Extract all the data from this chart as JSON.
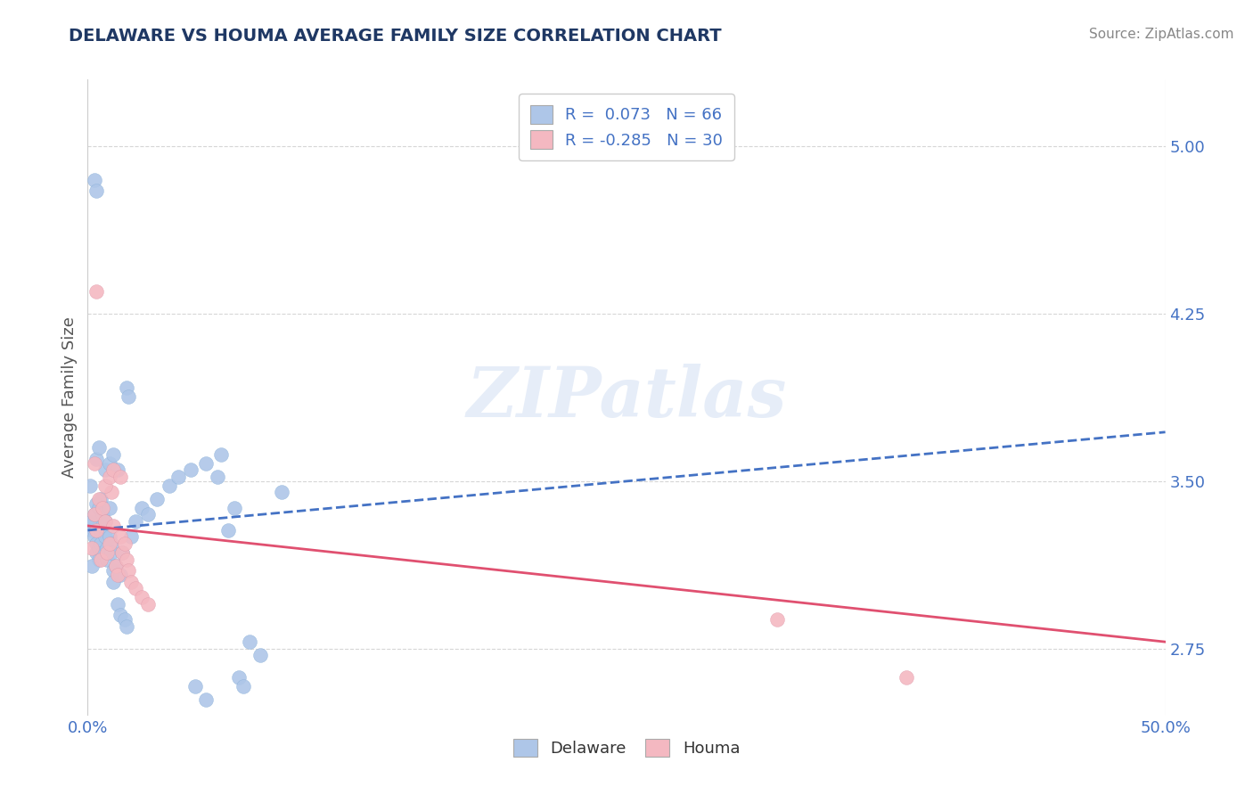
{
  "title": "DELAWARE VS HOUMA AVERAGE FAMILY SIZE CORRELATION CHART",
  "source_text": "Source: ZipAtlas.com",
  "ylabel": "Average Family Size",
  "yticks": [
    2.75,
    3.5,
    4.25,
    5.0
  ],
  "ytick_labels": [
    "2.75",
    "3.50",
    "4.25",
    "5.00"
  ],
  "xlim": [
    0.0,
    0.5
  ],
  "ylim": [
    2.45,
    5.3
  ],
  "legend_entries": [
    {
      "label": "R =  0.073   N = 66",
      "color": "#aec6e8"
    },
    {
      "label": "R = -0.285   N = 30",
      "color": "#f4b8c1"
    }
  ],
  "legend_bottom": [
    "Delaware",
    "Houma"
  ],
  "watermark": "ZIPatlas",
  "delaware_color": "#aec6e8",
  "houma_color": "#f4b8c1",
  "delaware_line_color": "#4472c4",
  "houma_line_color": "#e05070",
  "background_color": "#ffffff",
  "grid_color": "#cccccc",
  "delaware_points": [
    [
      0.001,
      3.3
    ],
    [
      0.002,
      3.28
    ],
    [
      0.002,
      3.32
    ],
    [
      0.003,
      3.25
    ],
    [
      0.003,
      3.35
    ],
    [
      0.004,
      3.22
    ],
    [
      0.004,
      3.18
    ],
    [
      0.004,
      3.4
    ],
    [
      0.005,
      3.15
    ],
    [
      0.005,
      3.2
    ],
    [
      0.005,
      3.38
    ],
    [
      0.006,
      3.42
    ],
    [
      0.006,
      3.28
    ],
    [
      0.006,
      3.22
    ],
    [
      0.007,
      3.3
    ],
    [
      0.007,
      3.18
    ],
    [
      0.007,
      3.35
    ],
    [
      0.008,
      3.32
    ],
    [
      0.008,
      3.25
    ],
    [
      0.009,
      3.2
    ],
    [
      0.009,
      3.15
    ],
    [
      0.01,
      3.25
    ],
    [
      0.01,
      3.38
    ],
    [
      0.011,
      3.22
    ],
    [
      0.011,
      3.18
    ],
    [
      0.012,
      3.1
    ],
    [
      0.012,
      3.05
    ],
    [
      0.013,
      3.12
    ],
    [
      0.014,
      2.95
    ],
    [
      0.015,
      2.9
    ],
    [
      0.015,
      3.08
    ],
    [
      0.016,
      3.18
    ],
    [
      0.017,
      2.88
    ],
    [
      0.018,
      2.85
    ],
    [
      0.004,
      3.6
    ],
    [
      0.005,
      3.65
    ],
    [
      0.003,
      4.85
    ],
    [
      0.004,
      4.8
    ],
    [
      0.008,
      3.55
    ],
    [
      0.01,
      3.58
    ],
    [
      0.012,
      3.62
    ],
    [
      0.014,
      3.55
    ],
    [
      0.02,
      3.25
    ],
    [
      0.022,
      3.32
    ],
    [
      0.025,
      3.38
    ],
    [
      0.028,
      3.35
    ],
    [
      0.032,
      3.42
    ],
    [
      0.038,
      3.48
    ],
    [
      0.042,
      3.52
    ],
    [
      0.048,
      3.55
    ],
    [
      0.055,
      3.58
    ],
    [
      0.062,
      3.62
    ],
    [
      0.068,
      3.38
    ],
    [
      0.075,
      2.78
    ],
    [
      0.08,
      2.72
    ],
    [
      0.09,
      3.45
    ],
    [
      0.05,
      2.58
    ],
    [
      0.055,
      2.52
    ],
    [
      0.06,
      3.52
    ],
    [
      0.065,
      3.28
    ],
    [
      0.018,
      3.92
    ],
    [
      0.019,
      3.88
    ],
    [
      0.001,
      3.48
    ],
    [
      0.002,
      3.12
    ],
    [
      0.07,
      2.62
    ],
    [
      0.072,
      2.58
    ]
  ],
  "houma_points": [
    [
      0.002,
      3.2
    ],
    [
      0.003,
      3.35
    ],
    [
      0.004,
      3.28
    ],
    [
      0.005,
      3.42
    ],
    [
      0.006,
      3.15
    ],
    [
      0.007,
      3.38
    ],
    [
      0.008,
      3.32
    ],
    [
      0.009,
      3.18
    ],
    [
      0.01,
      3.22
    ],
    [
      0.011,
      3.45
    ],
    [
      0.012,
      3.3
    ],
    [
      0.013,
      3.12
    ],
    [
      0.014,
      3.08
    ],
    [
      0.015,
      3.25
    ],
    [
      0.016,
      3.18
    ],
    [
      0.017,
      3.22
    ],
    [
      0.018,
      3.15
    ],
    [
      0.019,
      3.1
    ],
    [
      0.02,
      3.05
    ],
    [
      0.022,
      3.02
    ],
    [
      0.025,
      2.98
    ],
    [
      0.028,
      2.95
    ],
    [
      0.004,
      4.35
    ],
    [
      0.008,
      3.48
    ],
    [
      0.01,
      3.52
    ],
    [
      0.012,
      3.55
    ],
    [
      0.015,
      3.52
    ],
    [
      0.32,
      2.88
    ],
    [
      0.38,
      2.62
    ],
    [
      0.003,
      3.58
    ]
  ],
  "delaware_trend": [
    0.0,
    0.5,
    3.28,
    3.72
  ],
  "houma_trend": [
    0.0,
    0.5,
    3.3,
    2.78
  ],
  "title_color": "#1f3864",
  "axis_label_color": "#555555",
  "tick_color": "#4472c4",
  "source_color": "#888888"
}
